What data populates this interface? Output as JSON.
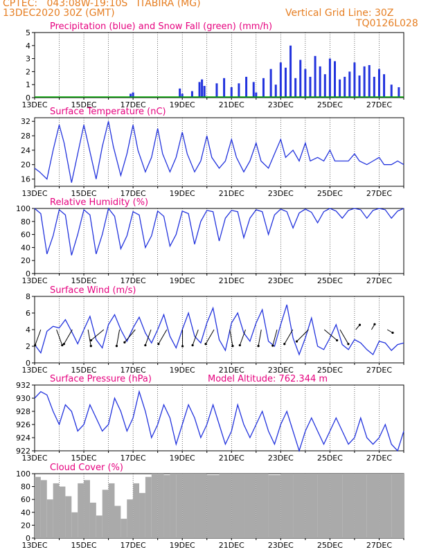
{
  "header": {
    "line1": "CPTEC:   043:08W-19:10S   ITABIRA (MG)",
    "line2": "13DEC2020 30Z (GMT)",
    "grid_note": "Vertical Grid Line: 30Z",
    "code": "TQ0126L028"
  },
  "colors": {
    "series": "#2233dd",
    "snow": "#00aa00",
    "title": "#e6007e",
    "header": "#e67e22",
    "cloud": "#aaaaaa"
  },
  "x_axis": {
    "start_day": 13,
    "end_day": 28,
    "labels": [
      "13DEC",
      "15DEC",
      "17DEC",
      "19DEC",
      "21DEC",
      "23DEC",
      "25DEC",
      "27DEC"
    ]
  },
  "panels": {
    "precip": {
      "title": "Precipitation (blue) and Snow Fall (green) (mm/h)",
      "yticks": [
        "0",
        "1",
        "2",
        "3",
        "4",
        "5"
      ]
    },
    "temp": {
      "title": "Surface Temperature (nC)",
      "yticks": [
        "16",
        "20",
        "24",
        "28",
        "32"
      ]
    },
    "rh": {
      "title": "Relative Humidity (%)",
      "yticks": [
        "0",
        "20",
        "40",
        "60",
        "80",
        "100"
      ]
    },
    "wind": {
      "title": "Surface Wind (m/s)",
      "yticks": [
        "0",
        "2",
        "4",
        "6",
        "8"
      ]
    },
    "pres": {
      "title": "Surface Pressure (hPa)",
      "altitude": "Model Altitude: 762.344 m",
      "yticks": [
        "922",
        "924",
        "926",
        "928",
        "930",
        "932"
      ]
    },
    "cloud": {
      "title": "Cloud Cover (%)",
      "yticks": [
        "0",
        "20",
        "40",
        "60",
        "80",
        "100"
      ]
    }
  },
  "chart_data": [
    {
      "type": "bar",
      "title": "Precipitation (blue) and Snow Fall (green) (mm/h)",
      "ylim": [
        0,
        5
      ],
      "series": [
        {
          "name": "Precipitation",
          "x": [
            16.9,
            17.0,
            18.9,
            19.0,
            19.4,
            19.7,
            19.8,
            19.9,
            20.4,
            20.7,
            21.0,
            21.3,
            21.6,
            21.9,
            22.0,
            22.3,
            22.6,
            22.8,
            23.0,
            23.2,
            23.4,
            23.6,
            23.8,
            24.0,
            24.2,
            24.4,
            24.6,
            24.8,
            25.0,
            25.2,
            25.4,
            25.6,
            25.8,
            26.0,
            26.2,
            26.4,
            26.6,
            26.8,
            27.0,
            27.2,
            27.5,
            27.8
          ],
          "values": [
            0.3,
            0.4,
            0.7,
            0.3,
            0.5,
            1.2,
            1.4,
            0.9,
            1.1,
            1.5,
            0.8,
            1.1,
            1.6,
            1.2,
            0.4,
            1.5,
            2.2,
            1.0,
            2.7,
            2.3,
            4.0,
            1.5,
            2.9,
            2.2,
            1.6,
            3.2,
            2.4,
            1.8,
            3.0,
            2.8,
            1.4,
            1.6,
            2.0,
            2.7,
            1.7,
            2.4,
            2.5,
            1.6,
            2.2,
            1.8,
            1.0,
            0.8
          ]
        },
        {
          "name": "Snow Fall",
          "x": [],
          "values": []
        }
      ]
    },
    {
      "type": "line",
      "title": "Surface Temperature (nC)",
      "ylim": [
        14,
        33
      ],
      "x": [
        13.0,
        13.2,
        13.5,
        13.75,
        14.0,
        14.2,
        14.5,
        14.75,
        15.0,
        15.2,
        15.5,
        15.75,
        16.0,
        16.2,
        16.5,
        16.75,
        17.0,
        17.2,
        17.5,
        17.75,
        18.0,
        18.2,
        18.5,
        18.75,
        19.0,
        19.2,
        19.5,
        19.75,
        20.0,
        20.2,
        20.5,
        20.75,
        21.0,
        21.2,
        21.5,
        21.75,
        22.0,
        22.2,
        22.5,
        22.75,
        23.0,
        23.2,
        23.5,
        23.75,
        24.0,
        24.2,
        24.5,
        24.75,
        25.0,
        25.2,
        25.5,
        25.75,
        26.0,
        26.2,
        26.5,
        26.75,
        27.0,
        27.2,
        27.5,
        27.75,
        28.0
      ],
      "y": [
        19,
        18,
        16,
        24,
        31,
        26,
        15,
        23,
        31,
        25,
        16,
        25,
        32,
        25,
        17,
        23,
        31,
        24,
        18,
        22,
        30,
        23,
        18,
        22,
        29,
        23,
        18,
        21,
        28,
        22,
        19,
        21,
        27,
        22,
        18,
        21,
        26,
        21,
        19,
        23,
        27,
        22,
        24,
        21,
        26,
        21,
        22,
        21,
        24,
        21,
        21,
        21,
        23,
        21,
        20,
        21,
        22,
        20,
        20,
        21,
        20
      ]
    },
    {
      "type": "line",
      "title": "Relative Humidity (%)",
      "ylim": [
        0,
        100
      ],
      "x": [
        13.0,
        13.25,
        13.5,
        13.75,
        14.0,
        14.25,
        14.5,
        14.75,
        15.0,
        15.25,
        15.5,
        15.75,
        16.0,
        16.25,
        16.5,
        16.75,
        17.0,
        17.25,
        17.5,
        17.75,
        18.0,
        18.25,
        18.5,
        18.75,
        19.0,
        19.25,
        19.5,
        19.75,
        20.0,
        20.25,
        20.5,
        20.75,
        21.0,
        21.25,
        21.5,
        21.75,
        22.0,
        22.25,
        22.5,
        22.75,
        23.0,
        23.25,
        23.5,
        23.75,
        24.0,
        24.25,
        24.5,
        24.75,
        25.0,
        25.25,
        25.5,
        25.75,
        26.0,
        26.25,
        26.5,
        26.75,
        27.0,
        27.25,
        27.5,
        27.75,
        28.0
      ],
      "y": [
        100,
        92,
        30,
        58,
        98,
        90,
        28,
        60,
        98,
        90,
        30,
        60,
        100,
        88,
        38,
        58,
        95,
        90,
        40,
        58,
        96,
        88,
        42,
        60,
        96,
        92,
        45,
        80,
        97,
        95,
        50,
        85,
        97,
        95,
        55,
        85,
        98,
        95,
        60,
        90,
        99,
        95,
        70,
        93,
        99,
        94,
        78,
        95,
        100,
        96,
        85,
        97,
        100,
        98,
        85,
        97,
        100,
        98,
        85,
        96,
        100
      ]
    },
    {
      "type": "line",
      "title": "Surface Wind (m/s)",
      "ylim": [
        0,
        8
      ],
      "x": [
        13.0,
        13.25,
        13.5,
        13.75,
        14.0,
        14.25,
        14.5,
        14.75,
        15.0,
        15.25,
        15.5,
        15.75,
        16.0,
        16.25,
        16.5,
        16.75,
        17.0,
        17.25,
        17.5,
        17.75,
        18.0,
        18.25,
        18.5,
        18.75,
        19.0,
        19.25,
        19.5,
        19.75,
        20.0,
        20.25,
        20.5,
        20.75,
        21.0,
        21.25,
        21.5,
        21.75,
        22.0,
        22.25,
        22.5,
        22.75,
        23.0,
        23.25,
        23.5,
        23.75,
        24.0,
        24.25,
        24.5,
        24.75,
        25.0,
        25.25,
        25.5,
        25.75,
        26.0,
        26.25,
        26.5,
        26.75,
        27.0,
        27.25,
        27.5,
        27.75,
        28.0
      ],
      "y": [
        2.2,
        1.2,
        3.8,
        4.4,
        4.2,
        5.2,
        3.8,
        2.3,
        4.0,
        5.6,
        2.8,
        1.8,
        4.6,
        5.8,
        4.0,
        2.6,
        4.2,
        5.5,
        3.6,
        2.4,
        4.0,
        5.8,
        3.2,
        1.8,
        4.0,
        6.0,
        3.2,
        2.4,
        4.8,
        6.6,
        2.8,
        1.5,
        4.8,
        6.0,
        3.6,
        2.6,
        4.8,
        6.4,
        2.6,
        2.0,
        4.6,
        7.0,
        3.0,
        1.0,
        3.0,
        5.4,
        2.0,
        1.6,
        3.0,
        4.6,
        2.2,
        1.6,
        2.8,
        2.4,
        1.6,
        1.0,
        2.6,
        2.4,
        1.5,
        2.2,
        2.4
      ]
    },
    {
      "type": "line",
      "title": "Surface Pressure (hPa)",
      "ylim": [
        922,
        932
      ],
      "x": [
        13.0,
        13.25,
        13.5,
        13.75,
        14.0,
        14.25,
        14.5,
        14.75,
        15.0,
        15.25,
        15.5,
        15.75,
        16.0,
        16.25,
        16.5,
        16.75,
        17.0,
        17.25,
        17.5,
        17.75,
        18.0,
        18.25,
        18.5,
        18.75,
        19.0,
        19.25,
        19.5,
        19.75,
        20.0,
        20.25,
        20.5,
        20.75,
        21.0,
        21.25,
        21.5,
        21.75,
        22.0,
        22.25,
        22.5,
        22.75,
        23.0,
        23.25,
        23.5,
        23.75,
        24.0,
        24.25,
        24.5,
        24.75,
        25.0,
        25.25,
        25.5,
        25.75,
        26.0,
        26.25,
        26.5,
        26.75,
        27.0,
        27.25,
        27.5,
        27.75,
        28.0
      ],
      "y": [
        930,
        931,
        930.5,
        928,
        926,
        929,
        928,
        925,
        926,
        929,
        927,
        925,
        926,
        930,
        928,
        925,
        927,
        931,
        928,
        924,
        926,
        929,
        927,
        923,
        926,
        929,
        927,
        924,
        926,
        929,
        926,
        923,
        925,
        929,
        926,
        924,
        926,
        928,
        925,
        923,
        926,
        928,
        925,
        922,
        925,
        927,
        925,
        923,
        925,
        927,
        925,
        923,
        924,
        927,
        924,
        923,
        924,
        926,
        923,
        922,
        925
      ]
    },
    {
      "type": "bar",
      "title": "Cloud Cover (%)",
      "ylim": [
        0,
        100
      ],
      "x": [
        13.0,
        13.25,
        13.5,
        13.75,
        14.0,
        14.25,
        14.5,
        14.75,
        15.0,
        15.25,
        15.5,
        15.75,
        16.0,
        16.25,
        16.5,
        16.75,
        17.0,
        17.25,
        17.5,
        17.75,
        18.0,
        18.25,
        18.5,
        18.75,
        19.0,
        19.5,
        20.0,
        20.5,
        21.0,
        21.5,
        22.0,
        22.5,
        23.0,
        23.5,
        24.0,
        24.5,
        25.0,
        25.5,
        26.0,
        26.5,
        27.0,
        27.5,
        28.0
      ],
      "values": [
        95,
        90,
        60,
        85,
        80,
        65,
        40,
        85,
        90,
        55,
        35,
        75,
        85,
        50,
        30,
        60,
        85,
        70,
        95,
        100,
        100,
        98,
        100,
        100,
        100,
        100,
        98,
        100,
        100,
        100,
        100,
        98,
        100,
        100,
        100,
        100,
        100,
        100,
        100,
        100,
        100,
        100,
        100
      ]
    }
  ]
}
